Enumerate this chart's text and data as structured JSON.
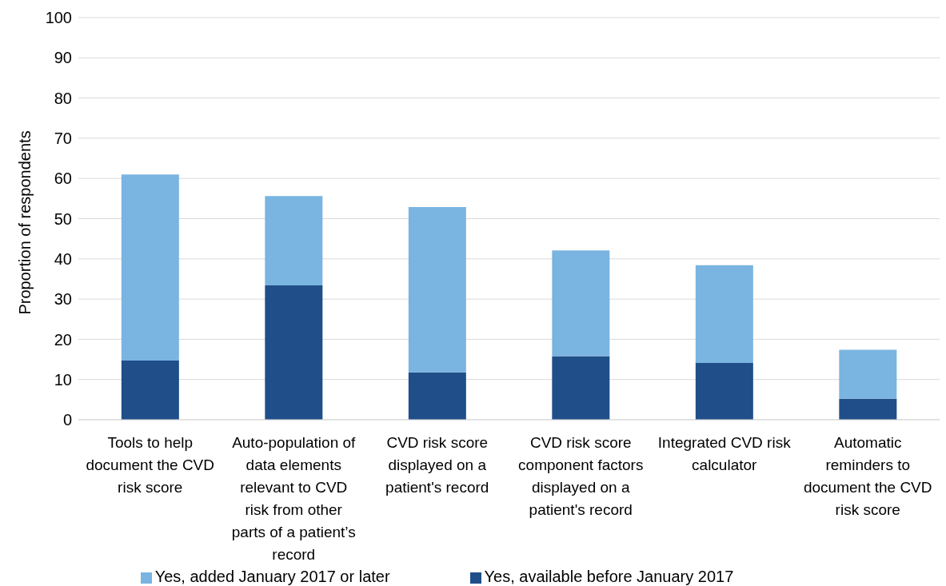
{
  "chart_data": {
    "type": "bar",
    "stacked": true,
    "ylabel": "Proportion of respondents",
    "categories": [
      "Tools to help document the CVD risk score",
      "Auto-population of data elements relevant to CVD risk from other parts of a patient’s record",
      "CVD risk score displayed on a patient's record",
      "CVD risk score component factors displayed on a patient's record",
      "Integrated CVD risk calculator",
      "Automatic reminders to document the CVD risk score"
    ],
    "series": [
      {
        "name": "Yes, available before January 2017",
        "color": "#1f4e89",
        "values": [
          14.7,
          33.4,
          11.8,
          15.8,
          14.1,
          5.2
        ]
      },
      {
        "name": "Yes, added January 2017 or later",
        "color": "#7ab4e0",
        "values": [
          46.3,
          22.2,
          41.1,
          26.3,
          24.3,
          12.2
        ]
      }
    ],
    "ylim": [
      0,
      100
    ],
    "yticks": [
      0,
      10,
      20,
      30,
      40,
      50,
      60,
      70,
      80,
      90,
      100
    ],
    "grid": "y",
    "legend": "bottom"
  }
}
